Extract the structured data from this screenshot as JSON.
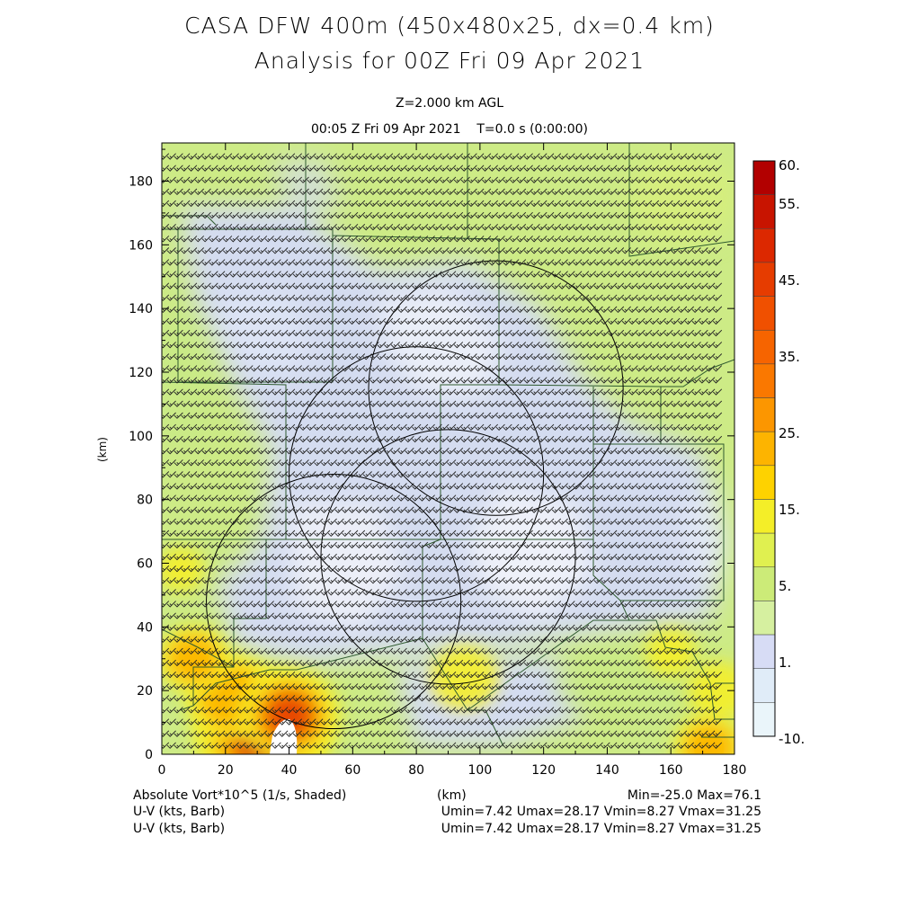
{
  "title": {
    "line1": "CASA DFW 400m (450x480x25, dx=0.4 km)",
    "line2": "Analysis for 00Z Fri 09 Apr 2021"
  },
  "subtitle": {
    "level": "Z=2.000 km AGL",
    "time": "00:05 Z Fri 09 Apr 2021    T=0.0 s (0:00:00)"
  },
  "footer": {
    "field1": "Absolute Vort*10^5 (1/s, Shaded)",
    "xunit": "(km)",
    "minmax": "Min=-25.0 Max=76.1",
    "field2": "U-V (kts, Barb)",
    "stats2": "Umin=7.42 Umax=28.17 Vmin=8.27 Vmax=31.25",
    "field3": "U-V (kts, Barb)",
    "stats3": "Umin=7.42 Umax=28.17 Vmin=8.27 Vmax=31.25"
  },
  "chart_data": {
    "type": "heatmap",
    "title": "Absolute Vort*10^5 (1/s, Shaded)",
    "xlabel": "(km)",
    "ylabel": "(km)",
    "xlim": [
      0,
      180
    ],
    "ylim": [
      0,
      192
    ],
    "x_ticks": [
      0,
      20,
      40,
      60,
      80,
      100,
      120,
      140,
      160,
      180
    ],
    "y_ticks": [
      0,
      20,
      40,
      60,
      80,
      100,
      120,
      140,
      160,
      180
    ],
    "colorbar": {
      "labels": [
        "60.",
        "55.",
        "45.",
        "35.",
        "25.",
        "15.",
        "5.",
        "1.",
        "-10."
      ],
      "label_values": [
        60,
        55,
        45,
        35,
        25,
        15,
        5,
        1,
        -10
      ],
      "colors": [
        "#b20000",
        "#c81400",
        "#dc2800",
        "#e63c00",
        "#f05000",
        "#f66400",
        "#fa7800",
        "#fc9600",
        "#fdb400",
        "#fed200",
        "#f4ee28",
        "#e0f050",
        "#cceb78",
        "#d6f0a0",
        "#d7dcf5",
        "#e0ecf8",
        "#eaf5fa"
      ]
    },
    "radar_circles": [
      {
        "cx": 105,
        "cy": 115,
        "r": 40
      },
      {
        "cx": 80,
        "cy": 88,
        "r": 40
      },
      {
        "cx": 90,
        "cy": 62,
        "r": 40
      },
      {
        "cx": 54,
        "cy": 48,
        "r": 40
      }
    ],
    "vorticity_features": [
      {
        "x": 31,
        "y": 6,
        "value": 60
      },
      {
        "x": 22,
        "y": 18,
        "value": 40
      },
      {
        "x": 40,
        "y": 12,
        "value": 45
      },
      {
        "x": 10,
        "y": 30,
        "value": 30
      },
      {
        "x": 6,
        "y": 58,
        "value": 18
      },
      {
        "x": 95,
        "y": 24,
        "value": 28
      },
      {
        "x": 160,
        "y": 32,
        "value": 20
      },
      {
        "x": 175,
        "y": 20,
        "value": 25
      },
      {
        "x": 172,
        "y": 2,
        "value": 30
      }
    ],
    "wind_barb_direction_deg": 225,
    "wind_speed_range_kts": [
      10,
      45
    ],
    "min": -25.0,
    "max": 76.1
  }
}
